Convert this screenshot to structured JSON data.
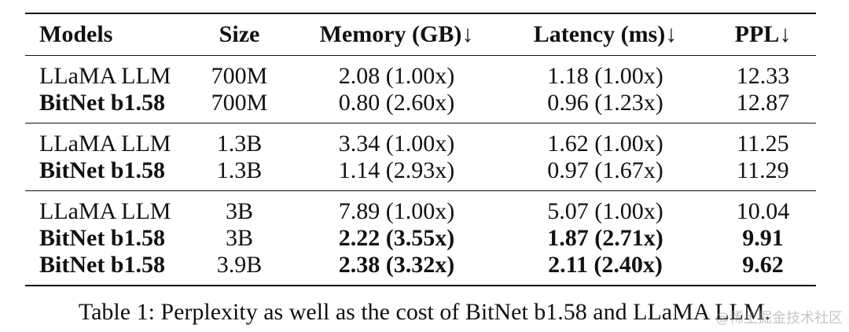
{
  "table": {
    "headers": [
      "Models",
      "Size",
      "Memory (GB)↓",
      "Latency (ms)↓",
      "PPL↓"
    ],
    "groups": [
      {
        "rows": [
          {
            "model": "LLaMA LLM",
            "size": "700M",
            "memory": "2.08 (1.00x)",
            "latency": "1.18 (1.00x)",
            "ppl": "12.33"
          },
          {
            "model": "BitNet b1.58",
            "size": "700M",
            "memory": "0.80 (2.60x)",
            "latency": "0.96 (1.23x)",
            "ppl": "12.87"
          }
        ]
      },
      {
        "rows": [
          {
            "model": "LLaMA LLM",
            "size": "1.3B",
            "memory": "3.34 (1.00x)",
            "latency": "1.62 (1.00x)",
            "ppl": "11.25"
          },
          {
            "model": "BitNet b1.58",
            "size": "1.3B",
            "memory": "1.14 (2.93x)",
            "latency": "0.97 (1.67x)",
            "ppl": "11.29"
          }
        ]
      },
      {
        "rows": [
          {
            "model": "LLaMA LLM",
            "size": "3B",
            "memory": "7.89 (1.00x)",
            "latency": "5.07 (1.00x)",
            "ppl": "10.04"
          },
          {
            "model": "BitNet b1.58",
            "size": "3B",
            "memory": "2.22 (3.55x)",
            "latency": "1.87 (2.71x)",
            "ppl": "9.91"
          },
          {
            "model": "BitNet b1.58",
            "size": "3.9B",
            "memory": "2.38 (3.32x)",
            "latency": "2.11 (2.40x)",
            "ppl": "9.62"
          }
        ]
      }
    ]
  },
  "caption": "Table 1: Perplexity as well as the cost of BitNet b1.58 and LLaMA LLM.",
  "watermark": "@稀土掘金技术社区"
}
